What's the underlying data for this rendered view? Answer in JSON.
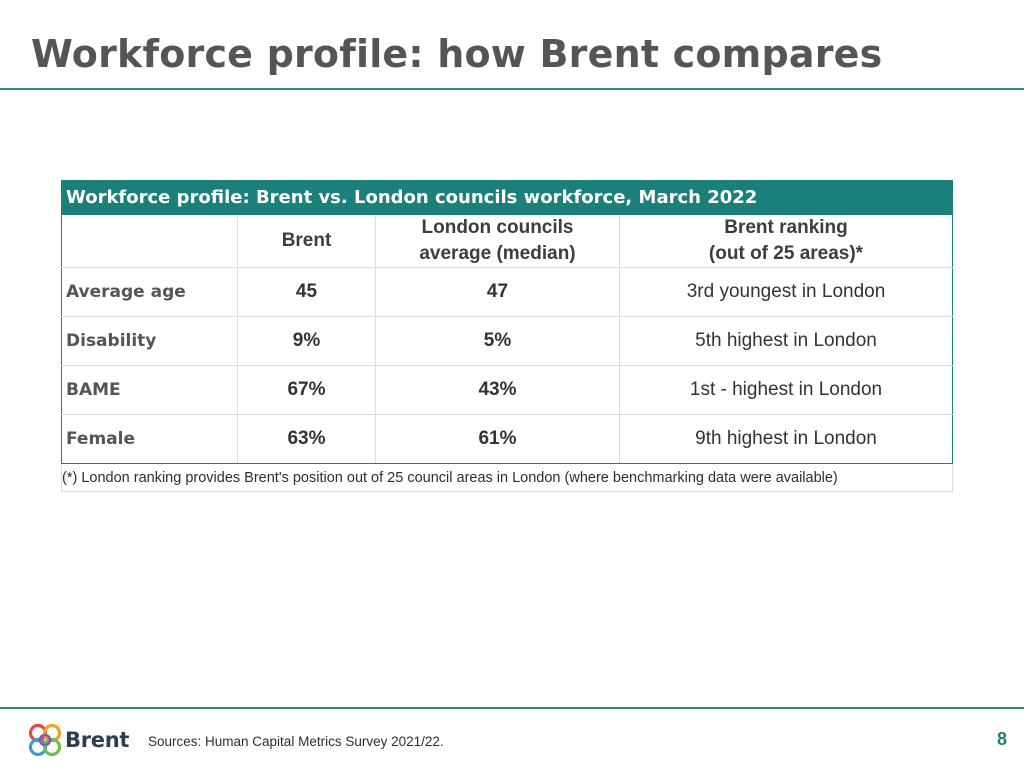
{
  "slide": {
    "title": "Workforce profile: how Brent compares",
    "page_number": "8",
    "sources": "Sources: Human Capital Metrics Survey 2021/22.",
    "logo_text": "Brent"
  },
  "table": {
    "caption": "Workforce profile: Brent vs. London councils workforce, March 2022",
    "headers": {
      "col1": "",
      "col2": "Brent",
      "col3_line1": "London councils",
      "col3_line2": "average (median)",
      "col4_line1": "Brent ranking",
      "col4_line2": "(out of 25 areas)*"
    },
    "rows": [
      {
        "label": "Average age",
        "brent": "45",
        "london": "47",
        "ranking": "3rd youngest in London"
      },
      {
        "label": "Disability",
        "brent": "9%",
        "london": "5%",
        "ranking": "5th highest in London"
      },
      {
        "label": "BAME",
        "brent": "67%",
        "london": "43%",
        "ranking": "1st - highest in London"
      },
      {
        "label": "Female",
        "brent": "63%",
        "london": "61%",
        "ranking": "9th highest in London"
      }
    ],
    "footnote": "(*) London ranking provides Brent's position out of 25 council areas in London (where benchmarking data were available)"
  },
  "colors": {
    "accent_teal": "#1b8079",
    "title_grey": "#555555"
  },
  "icons": {
    "logo": "brent-logo-icon"
  }
}
